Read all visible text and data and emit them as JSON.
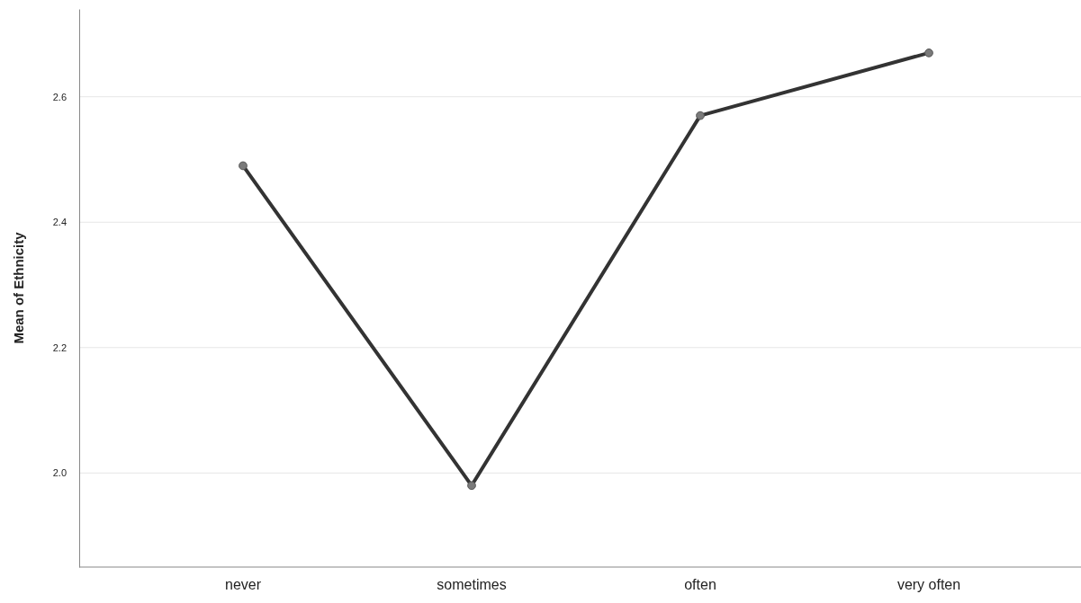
{
  "chart_data": {
    "type": "line",
    "ylabel": "Mean of Ethnicity",
    "categories": [
      "never",
      "sometimes",
      "often",
      "very often"
    ],
    "series": [
      {
        "color": "#333333",
        "values": [
          2.49,
          1.98,
          2.57,
          2.67
        ]
      }
    ],
    "ylim": [
      1.85,
      2.74
    ],
    "yticks": [
      {
        "value": 2.0,
        "label": "2.0"
      },
      {
        "value": 2.2,
        "label": "2.2"
      },
      {
        "value": 2.4,
        "label": "2.4"
      },
      {
        "value": 2.6,
        "label": "2.6"
      }
    ],
    "grid": "y",
    "marker": "circle",
    "line_style": "solid"
  }
}
